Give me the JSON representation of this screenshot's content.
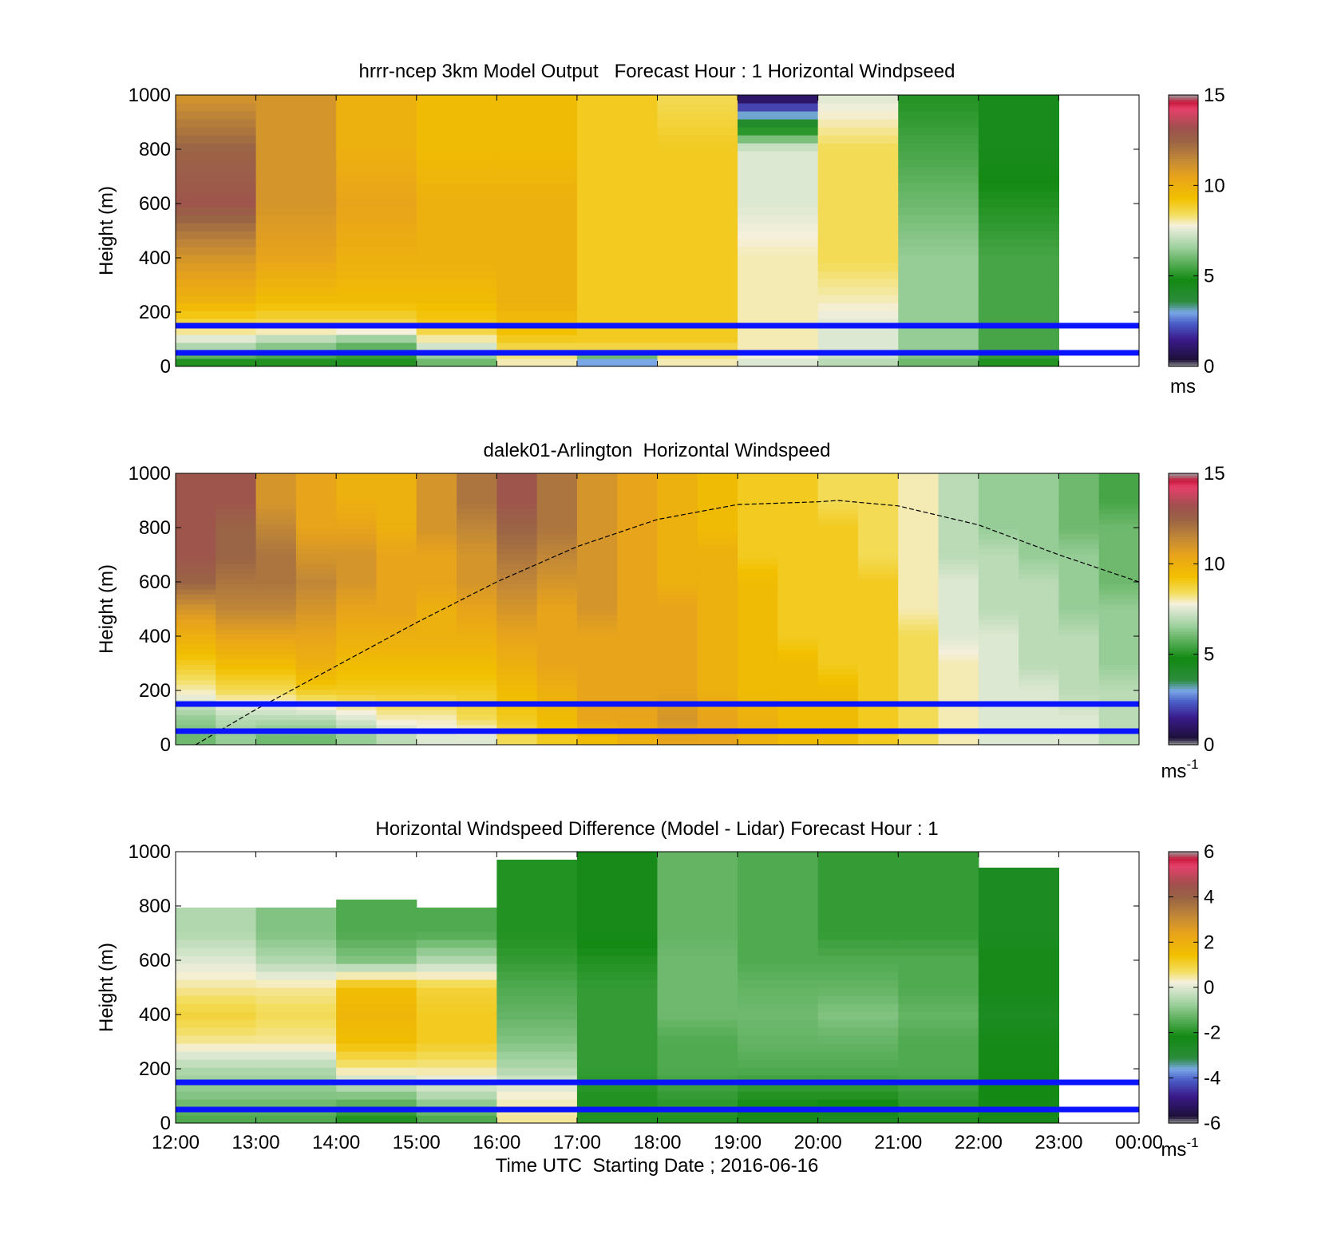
{
  "figure": {
    "xlabel": "Time UTC  Starting Date ; 2016-06-16",
    "x_tick_labels": [
      "12:00",
      "13:00",
      "14:00",
      "15:00",
      "16:00",
      "17:00",
      "18:00",
      "19:00",
      "20:00",
      "21:00",
      "22:00",
      "23:00",
      "00:00"
    ]
  },
  "chart_data": [
    {
      "type": "heatmap",
      "title": "hrrr-ncep 3km Model Output   Forecast Hour : 1 Horizontal Windpseed",
      "ylabel": "Height (m)",
      "xlabel": "",
      "x_range": [
        "12:00",
        "00:00"
      ],
      "ylim": [
        0,
        1000
      ],
      "y_ticks": [
        "0",
        "200",
        "400",
        "600",
        "800",
        "1000"
      ],
      "colorbar": {
        "ticks": [
          "0",
          "5",
          "10",
          "15"
        ],
        "range": [
          0,
          15
        ],
        "unit": "ms"
      },
      "reference_lines_m": [
        50,
        150
      ],
      "hourly_profiles": [
        {
          "time": "12:00",
          "heights_m": [
            25,
            60,
            100,
            150,
            250,
            400,
            600,
            800,
            1000
          ],
          "speed": [
            5,
            6.5,
            7.5,
            8.5,
            10,
            11,
            13,
            12.5,
            11
          ]
        },
        {
          "time": "13:00",
          "heights_m": [
            25,
            60,
            100,
            150,
            250,
            400,
            600,
            800,
            1000
          ],
          "speed": [
            5,
            6,
            7,
            8.5,
            9.5,
            10.5,
            11,
            11,
            11
          ]
        },
        {
          "time": "14:00",
          "heights_m": [
            25,
            60,
            100,
            150,
            250,
            400,
            600,
            800,
            1000
          ],
          "speed": [
            5,
            5.5,
            6.5,
            8.5,
            9.5,
            10,
            10.5,
            10,
            10
          ]
        },
        {
          "time": "15:00",
          "heights_m": [
            25,
            60,
            100,
            150,
            250,
            400,
            600,
            800,
            1000
          ],
          "speed": [
            6,
            7,
            8,
            9,
            9.5,
            10,
            10,
            9.5,
            9.5
          ]
        },
        {
          "time": "16:00",
          "heights_m": [
            25,
            60,
            100,
            150,
            250,
            400,
            600,
            800,
            1000
          ],
          "speed": [
            8,
            8.5,
            9,
            9.5,
            10,
            10,
            10,
            9.5,
            9.5
          ]
        },
        {
          "time": "17:00",
          "heights_m": [
            25,
            60,
            100,
            150,
            250,
            400,
            600,
            800,
            1000
          ],
          "speed": [
            3,
            8.5,
            9,
            9,
            9,
            9,
            9,
            9,
            9
          ]
        },
        {
          "time": "18:00",
          "heights_m": [
            25,
            60,
            100,
            150,
            250,
            400,
            600,
            800,
            1000
          ],
          "speed": [
            8,
            8.5,
            9,
            9,
            9,
            9,
            9,
            9,
            8.5
          ]
        },
        {
          "time": "19:00",
          "heights_m": [
            25,
            60,
            100,
            150,
            250,
            400,
            600,
            800,
            1000
          ],
          "speed": [
            7.5,
            8,
            8,
            8,
            8,
            8,
            7.5,
            7.5,
            0.5
          ]
        },
        {
          "time": "20:00",
          "heights_m": [
            25,
            60,
            100,
            150,
            250,
            400,
            600,
            800,
            1000
          ],
          "speed": [
            7,
            7.5,
            7.5,
            7.5,
            8,
            8.5,
            8.5,
            8.5,
            7.5
          ]
        },
        {
          "time": "21:00",
          "heights_m": [
            25,
            60,
            100,
            150,
            250,
            400,
            600,
            800,
            1000
          ],
          "speed": [
            6,
            6.5,
            6.5,
            6.5,
            6.5,
            6.5,
            6,
            5.5,
            5
          ]
        },
        {
          "time": "22:00",
          "heights_m": [
            25,
            60,
            100,
            150,
            250,
            400,
            600,
            800,
            1000
          ],
          "speed": [
            5,
            5.5,
            5.5,
            5.5,
            5.5,
            5.5,
            5,
            4.5,
            4.5
          ]
        }
      ]
    },
    {
      "type": "heatmap",
      "title": "dalek01-Arlington  Horizontal Windspeed",
      "ylabel": "Height (m)",
      "xlabel": "",
      "x_range": [
        "12:00",
        "00:00"
      ],
      "ylim": [
        0,
        1000
      ],
      "y_ticks": [
        "0",
        "200",
        "400",
        "600",
        "800",
        "1000"
      ],
      "colorbar": {
        "ticks": [
          "0",
          "5",
          "10",
          "15"
        ],
        "range": [
          0,
          15
        ],
        "unit": "ms",
        "unit_superscript": "-1"
      },
      "reference_lines_m": [
        50,
        150
      ],
      "boundary_layer_curve": {
        "times": [
          "12:15",
          "13:00",
          "14:00",
          "15:00",
          "16:00",
          "17:00",
          "18:00",
          "19:00",
          "20:00",
          "20:15",
          "21:00",
          "22:00",
          "23:00",
          "00:00"
        ],
        "height_m": [
          0,
          130,
          290,
          450,
          600,
          730,
          830,
          885,
          895,
          900,
          880,
          810,
          700,
          600
        ]
      },
      "profile_reference_heights_m": [
        25,
        100,
        200,
        300,
        400,
        500,
        600,
        700,
        800,
        900
      ],
      "half_hourly_profiles": [
        {
          "time": "12:00",
          "speed": [
            6,
            6.5,
            8,
            9,
            10,
            11,
            12.5,
            13,
            13,
            13
          ]
        },
        {
          "time": "12:30",
          "speed": [
            6.5,
            7,
            8.5,
            9.5,
            10.5,
            11.5,
            12,
            12.5,
            12.5,
            13
          ]
        },
        {
          "time": "13:00",
          "speed": [
            6,
            7,
            8.5,
            9.5,
            10.5,
            11.5,
            12,
            12,
            11.5,
            11
          ]
        },
        {
          "time": "13:30",
          "speed": [
            6,
            7,
            9,
            10,
            10.5,
            11,
            11.5,
            11,
            10.5,
            10.5
          ]
        },
        {
          "time": "14:00",
          "speed": [
            6.5,
            7.5,
            9,
            9.5,
            10,
            10.5,
            11,
            11,
            10.5,
            10
          ]
        },
        {
          "time": "14:30",
          "speed": [
            7,
            8,
            9,
            9.5,
            10,
            10.5,
            10.5,
            10.5,
            10,
            10
          ]
        },
        {
          "time": "15:00",
          "speed": [
            7.5,
            8,
            9,
            9.5,
            10,
            10,
            10.5,
            10.5,
            11,
            11
          ]
        },
        {
          "time": "15:30",
          "speed": [
            7.5,
            8.5,
            9,
            9.5,
            10,
            10.5,
            11,
            11,
            11.5,
            12
          ]
        },
        {
          "time": "16:00",
          "speed": [
            8.5,
            9,
            9.5,
            10,
            10.5,
            11,
            11.5,
            12,
            12.5,
            13
          ]
        },
        {
          "time": "16:30",
          "speed": [
            9,
            9.5,
            10,
            10.5,
            10.5,
            10.5,
            11,
            11.5,
            12,
            12
          ]
        },
        {
          "time": "17:00",
          "speed": [
            9.5,
            10.5,
            10.5,
            10.5,
            10.5,
            11,
            11,
            11,
            11,
            11
          ]
        },
        {
          "time": "17:30",
          "speed": [
            10,
            10.5,
            10.5,
            10.5,
            10.5,
            10.5,
            10.5,
            10.5,
            10.5,
            10.5
          ]
        },
        {
          "time": "18:00",
          "speed": [
            10.5,
            11,
            10.5,
            10.5,
            10.5,
            10.5,
            10,
            10,
            10,
            10
          ]
        },
        {
          "time": "18:30",
          "speed": [
            10.5,
            10.5,
            10,
            10,
            10,
            10,
            10,
            10,
            9.5,
            9.5
          ]
        },
        {
          "time": "19:00",
          "speed": [
            10,
            10,
            9.5,
            9.5,
            9.5,
            9.5,
            9.5,
            9,
            9,
            9
          ]
        },
        {
          "time": "19:30",
          "speed": [
            9.5,
            9.5,
            9.5,
            9.5,
            9,
            9,
            9,
            9,
            9,
            9
          ]
        },
        {
          "time": "20:00",
          "speed": [
            9.5,
            9.5,
            9.5,
            9,
            9,
            9,
            9,
            9,
            9,
            8.5
          ]
        },
        {
          "time": "20:30",
          "speed": [
            9,
            9,
            9,
            9,
            9,
            9,
            9,
            8.5,
            8.5,
            8.5
          ]
        },
        {
          "time": "21:00",
          "speed": [
            8.5,
            8.5,
            8.5,
            8.5,
            8.5,
            8,
            8,
            8,
            8,
            8
          ]
        },
        {
          "time": "21:30",
          "speed": [
            8,
            8,
            8,
            8,
            7.5,
            7.5,
            7.5,
            7,
            7,
            7
          ]
        },
        {
          "time": "22:00",
          "speed": [
            7.5,
            7.5,
            7.5,
            7.5,
            7.5,
            7,
            7,
            7,
            6.5,
            6.5
          ]
        },
        {
          "time": "22:30",
          "speed": [
            7.5,
            7.5,
            7.5,
            7,
            7,
            7,
            7,
            6.5,
            6.5,
            6.5
          ]
        },
        {
          "time": "23:00",
          "speed": [
            7.5,
            7.5,
            7,
            7,
            7,
            6.5,
            6.5,
            6.5,
            6,
            6
          ]
        },
        {
          "time": "23:30",
          "speed": [
            7,
            7,
            7,
            6.5,
            6.5,
            6.5,
            6,
            6,
            6,
            5.5
          ]
        }
      ]
    },
    {
      "type": "heatmap",
      "title": "Horizontal Windspeed Difference (Model - Lidar) Forecast Hour : 1",
      "ylabel": "Height (m)",
      "xlabel": "Time UTC  Starting Date ; 2016-06-16",
      "x_range": [
        "12:00",
        "00:00"
      ],
      "ylim": [
        0,
        1000
      ],
      "y_ticks": [
        "0",
        "200",
        "400",
        "600",
        "800",
        "1000"
      ],
      "colorbar": {
        "ticks": [
          "-6",
          "-4",
          "-2",
          "0",
          "2",
          "4",
          "6"
        ],
        "range": [
          -6,
          6
        ],
        "unit": "ms",
        "unit_superscript": "-1"
      },
      "reference_lines_m": [
        50,
        150
      ],
      "hourly_profiles": [
        {
          "time": "12:00",
          "top_m": 790,
          "heights_m": [
            25,
            100,
            200,
            300,
            400,
            500,
            600,
            700
          ],
          "diff": [
            -1.5,
            -1,
            -0.5,
            0.5,
            1,
            0.5,
            0,
            -0.5
          ]
        },
        {
          "time": "13:00",
          "top_m": 790,
          "heights_m": [
            25,
            100,
            200,
            300,
            400,
            500,
            600,
            700
          ],
          "diff": [
            -1.5,
            -1,
            -0.5,
            0.5,
            0.8,
            0.5,
            -0.5,
            -1
          ]
        },
        {
          "time": "14:00",
          "top_m": 835,
          "heights_m": [
            25,
            100,
            200,
            300,
            400,
            500,
            600,
            700
          ],
          "diff": [
            -2,
            -1,
            0.5,
            1.5,
            1.8,
            1.5,
            -1,
            -1.5
          ]
        },
        {
          "time": "15:00",
          "top_m": 805,
          "heights_m": [
            25,
            100,
            200,
            300,
            400,
            500,
            600,
            700
          ],
          "diff": [
            -1.5,
            -0.5,
            0.5,
            1.2,
            1.2,
            1,
            -0.5,
            -1.5
          ]
        },
        {
          "time": "16:00",
          "top_m": 970,
          "heights_m": [
            25,
            100,
            200,
            300,
            400,
            500,
            600,
            700
          ],
          "diff": [
            0.5,
            0.3,
            -0.5,
            -1,
            -1.3,
            -1.5,
            -1.8,
            -2
          ]
        },
        {
          "time": "17:00",
          "top_m": 1000,
          "heights_m": [
            25,
            100,
            200,
            300,
            400,
            500,
            600,
            700
          ],
          "diff": [
            -2,
            -2,
            -1.8,
            -1.8,
            -1.8,
            -1.8,
            -2,
            -2.3
          ]
        },
        {
          "time": "18:00",
          "top_m": 1000,
          "heights_m": [
            25,
            100,
            200,
            300,
            400,
            500,
            600,
            700
          ],
          "diff": [
            -2,
            -1.8,
            -1.5,
            -1.5,
            -1.2,
            -1.2,
            -1.2,
            -1.3
          ]
        },
        {
          "time": "19:00",
          "top_m": 1000,
          "heights_m": [
            25,
            100,
            200,
            300,
            400,
            500,
            600,
            700
          ],
          "diff": [
            -2.3,
            -2,
            -1.5,
            -1.3,
            -1.2,
            -1.3,
            -1.5,
            -1.5
          ]
        },
        {
          "time": "20:00",
          "top_m": 1000,
          "heights_m": [
            25,
            100,
            200,
            300,
            400,
            500,
            600,
            700
          ],
          "diff": [
            -2.5,
            -2,
            -1.5,
            -1.3,
            -1,
            -1.3,
            -1.5,
            -1.8
          ]
        },
        {
          "time": "21:00",
          "top_m": 990,
          "heights_m": [
            25,
            100,
            200,
            300,
            400,
            500,
            600,
            700
          ],
          "diff": [
            -2,
            -1.8,
            -1.5,
            -1.5,
            -1.3,
            -1.5,
            -1.5,
            -1.8
          ]
        },
        {
          "time": "22:00",
          "top_m": 930,
          "heights_m": [
            25,
            100,
            200,
            300,
            400,
            500,
            600,
            700
          ],
          "diff": [
            -2.3,
            -2.2,
            -2.2,
            -2.3,
            -2.5,
            -2.3,
            -2.3,
            -2.5
          ]
        }
      ]
    }
  ]
}
